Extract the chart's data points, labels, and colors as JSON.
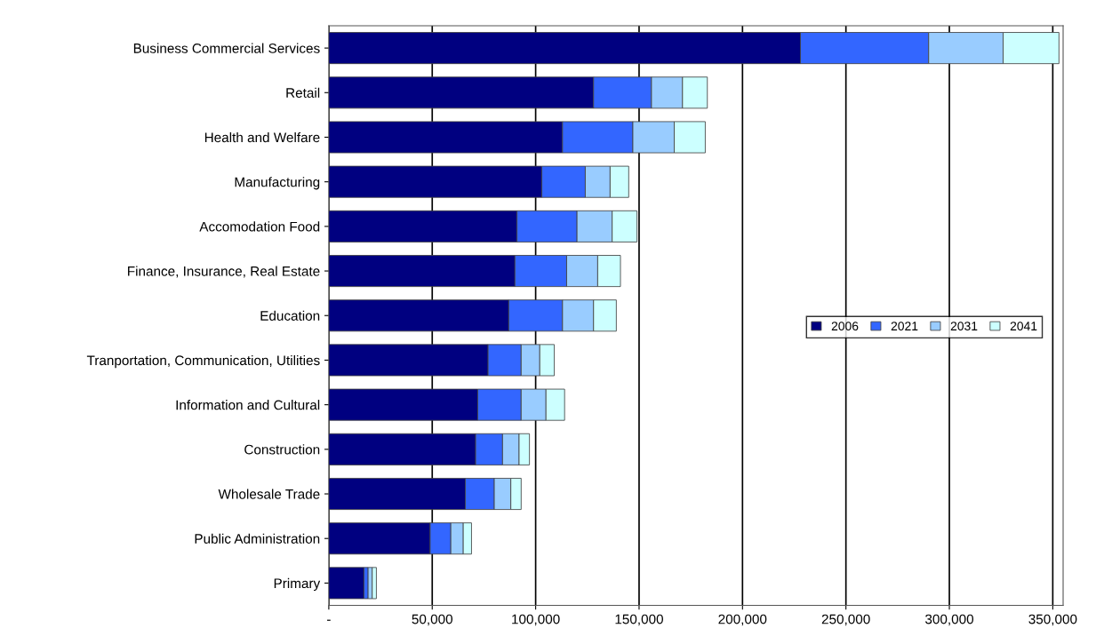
{
  "chart_data": {
    "type": "bar",
    "orientation": "horizontal",
    "stacked": true,
    "categories": [
      "Business Commercial Services",
      "Retail",
      "Health and Welfare",
      "Manufacturing",
      "Accomodation Food",
      "Finance, Insurance, Real Estate",
      "Education",
      "Tranportation, Communication, Utilities",
      "Information and Cultural",
      "Construction",
      "Wholesale Trade",
      "Public Administration",
      "Primary"
    ],
    "series": [
      {
        "name": "2006",
        "color": "#000080",
        "values": [
          228000,
          128000,
          113000,
          103000,
          91000,
          90000,
          87000,
          77000,
          72000,
          71000,
          66000,
          49000,
          17000
        ]
      },
      {
        "name": "2021",
        "color": "#3366ff",
        "values": [
          62000,
          28000,
          34000,
          21000,
          29000,
          25000,
          26000,
          16000,
          21000,
          13000,
          14000,
          10000,
          2000
        ]
      },
      {
        "name": "2031",
        "color": "#99ccff",
        "values": [
          36000,
          15000,
          20000,
          12000,
          17000,
          15000,
          15000,
          9000,
          12000,
          8000,
          8000,
          6000,
          2000
        ]
      },
      {
        "name": "2041",
        "color": "#ccffff",
        "values": [
          27000,
          12000,
          15000,
          9000,
          12000,
          11000,
          11000,
          7000,
          9000,
          5000,
          5000,
          4000,
          2000
        ]
      }
    ],
    "xlim": [
      0,
      355000
    ],
    "xticks": [
      {
        "value": 0,
        "label": "-"
      },
      {
        "value": 50000,
        "label": "50,000"
      },
      {
        "value": 100000,
        "label": "100,000"
      },
      {
        "value": 150000,
        "label": "150,000"
      },
      {
        "value": 200000,
        "label": "200,000"
      },
      {
        "value": 250000,
        "label": "250,000"
      },
      {
        "value": 300000,
        "label": "300,000"
      },
      {
        "value": 350000,
        "label": "350,000"
      }
    ],
    "grid": "x",
    "legend": "right"
  }
}
